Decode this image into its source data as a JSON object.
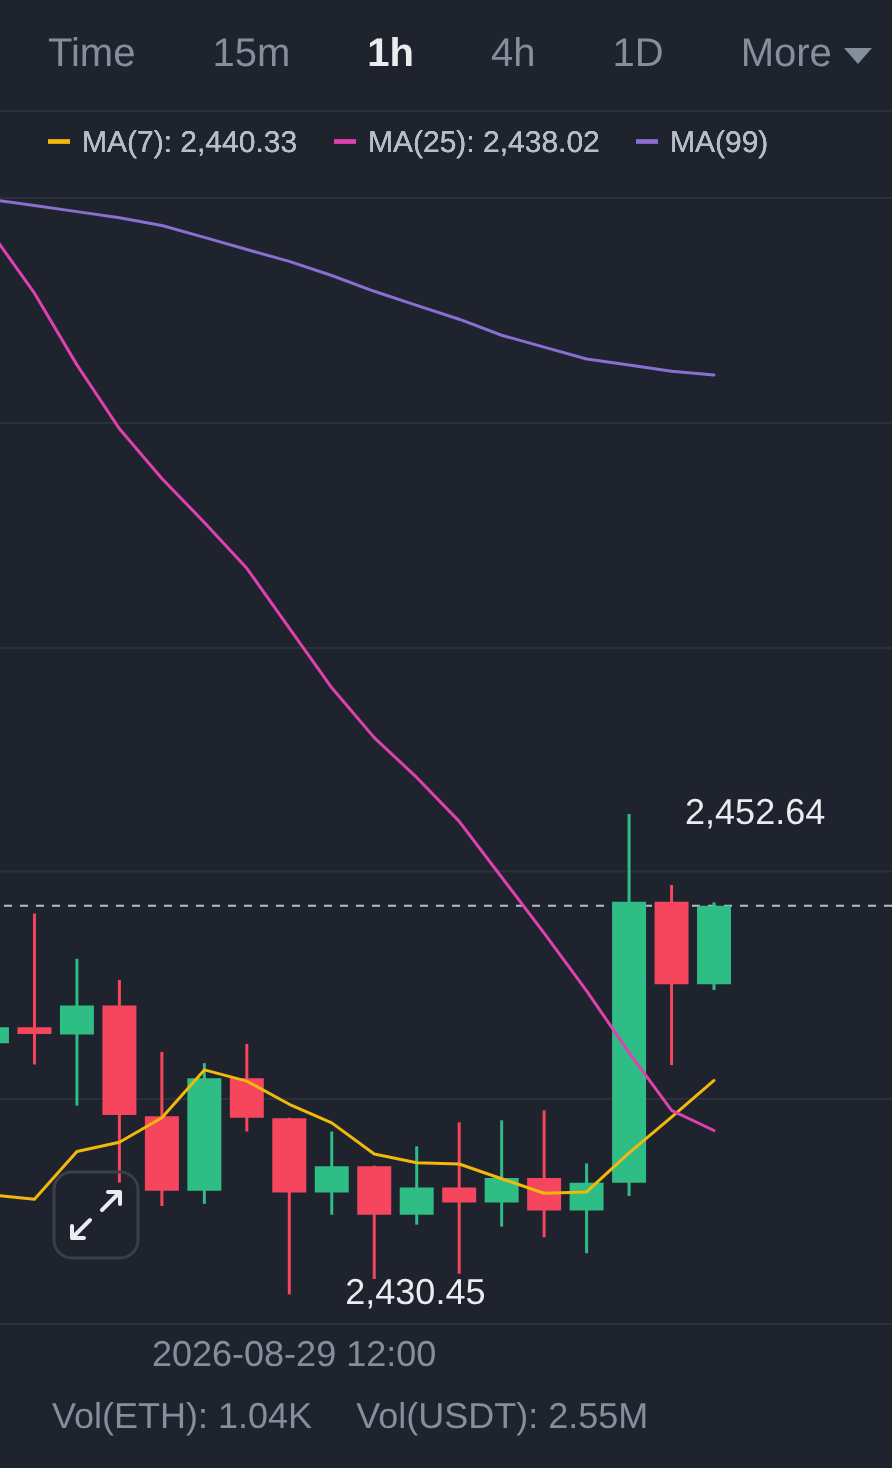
{
  "chart_data": {
    "type": "candlestick",
    "categories": [
      null,
      null,
      null,
      null,
      null,
      null,
      null,
      null,
      null,
      null,
      null,
      null,
      null,
      null,
      null,
      null,
      null,
      null
    ],
    "ohlc": [
      [
        2442.05,
        2442.79,
        2442.05,
        2442.79
      ],
      [
        2442.79,
        2448.04,
        2441.07,
        2442.48
      ],
      [
        2442.45,
        2445.95,
        2439.17,
        2443.8
      ],
      [
        2443.8,
        2444.97,
        2435.61,
        2438.74
      ],
      [
        2438.68,
        2441.65,
        2434.53,
        2435.24
      ],
      [
        2435.24,
        2441.13,
        2434.63,
        2440.43
      ],
      [
        2440.43,
        2442.02,
        2437.97,
        2438.61
      ],
      [
        2438.58,
        2438.61,
        2430.45,
        2435.15
      ],
      [
        2435.15,
        2437.97,
        2434.13,
        2436.37
      ],
      [
        2436.37,
        2436.4,
        2431.16,
        2434.13
      ],
      [
        2434.13,
        2437.29,
        2433.67,
        2435.39
      ],
      [
        2435.39,
        2438.4,
        2431.4,
        2434.69
      ],
      [
        2434.69,
        2438.49,
        2433.58,
        2435.82
      ],
      [
        2435.82,
        2438.95,
        2433.09,
        2434.32
      ],
      [
        2434.32,
        2436.5,
        2432.35,
        2435.61
      ],
      [
        2435.61,
        2452.64,
        2434.99,
        2448.59
      ],
      [
        2448.59,
        2449.36,
        2441.04,
        2444.78
      ],
      [
        2444.78,
        2448.56,
        2444.51,
        2448.4
      ]
    ],
    "colors": [
      "#2ebd85",
      "#f6465d",
      "#2ebd85",
      "#f6465d",
      "#f6465d",
      "#2ebd85",
      "#f6465d",
      "#f6465d",
      "#2ebd85",
      "#f6465d",
      "#2ebd85",
      "#f6465d",
      "#2ebd85",
      "#f6465d",
      "#2ebd85",
      "#2ebd85",
      "#f6465d",
      "#2ebd85"
    ],
    "series": [
      {
        "name": "MA(7): 2,440.33",
        "type": "line",
        "color": "#f0b90b",
        "values": [
          2435.05,
          2434.84,
          2437.05,
          2437.48,
          2438.61,
          2440.82,
          2440.3,
          2439.23,
          2438.37,
          2436.93,
          2436.53,
          2436.47,
          2435.79,
          2435.12,
          2435.18,
          2436.99,
          2438.64,
          2440.33
        ]
      },
      {
        "name": "MA(25): 2,438.02",
        "type": "line",
        "color": "#e040b0",
        "values": [
          2479.46,
          2476.7,
          2473.39,
          2470.44,
          2468.14,
          2466.11,
          2463.99,
          2461.23,
          2458.47,
          2456.17,
          2454.33,
          2452.3,
          2449.72,
          2447.14,
          2444.47,
          2441.62,
          2438.95,
          2438.02
        ]
      },
      {
        "name": "MA(99)",
        "type": "line",
        "color": "#8a6fd0",
        "values": [
          2481.02,
          2480.75,
          2480.47,
          2480.19,
          2479.83,
          2479.28,
          2478.72,
          2478.17,
          2477.52,
          2476.79,
          2476.14,
          2475.5,
          2474.76,
          2474.21,
          2473.66,
          2473.38,
          2473.1,
          2472.92
        ]
      }
    ],
    "ylim": [
      2429.08,
      2481.1
    ],
    "yticks": [
      {
        "value": 2429.08,
        "label": null
      },
      {
        "value": 2439.48,
        "label": null
      },
      {
        "value": 2449.99,
        "label": null
      },
      {
        "value": 2460.31,
        "label": null
      },
      {
        "value": 2470.71,
        "label": null
      },
      {
        "value": 2481.1,
        "label": null
      }
    ],
    "grid": "y",
    "legend": "top",
    "ref_lines": [
      {
        "axis": "y",
        "value": 2448.4,
        "label": null,
        "color": "#b7bdc6",
        "line_style": "dashed"
      }
    ],
    "annotations": [
      "Time",
      "15m",
      "1h",
      "4h",
      "1D",
      "More",
      "2,452.64",
      "2,430.45",
      "2026-08-29 12:00",
      "Vol(ETH): 1.04K",
      "Vol(USDT): 2.55M"
    ]
  }
}
